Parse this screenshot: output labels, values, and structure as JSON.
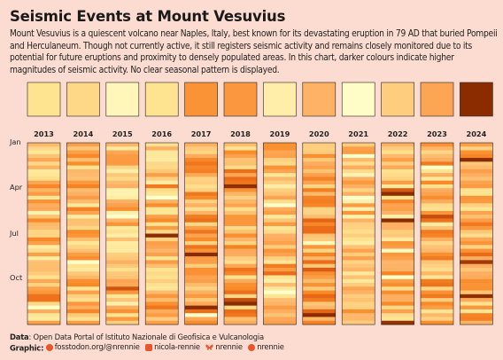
{
  "title": "Seismic Events at Mount Vesuvius",
  "subtitle": "Mount Vesuvius is a quiescent volcano near Naples, Italy, best known for its devastating eruption in 79 AD that buried Pompeii and Herculaneum. Though not currently active, it still registers seismic activity and remains closely monitored due to its potential for future eruptions and proximity to densely populated areas. In this chart, darker colours indicate higher magnitudes of seismic activity. No clear seasonal pattern is displayed.",
  "caption": {
    "data_label": "Data",
    "data_text": ": Open Data Portal of Istituto Nazionale di Geofisica e Vulcanologia",
    "graphic_label": "Graphic",
    "socials": [
      {
        "icon": "mastodon-icon",
        "text": "fosstodon.org/@nrennie"
      },
      {
        "icon": "linkedin-icon",
        "text": "nicola-rennie"
      },
      {
        "icon": "bluesky-icon",
        "text": "nrennie"
      },
      {
        "icon": "github-icon",
        "text": "nrennie"
      }
    ]
  },
  "colors": {
    "background": "#fcdcd0",
    "scale_low": "#ffffcc",
    "scale_mid": "#fd8d3c",
    "scale_high": "#8b2c00"
  },
  "chart_data": {
    "type": "heatmap",
    "years": [
      "2013",
      "2014",
      "2015",
      "2016",
      "2017",
      "2018",
      "2019",
      "2020",
      "2021",
      "2022",
      "2023",
      "2024"
    ],
    "annual_level": [
      0.25,
      0.3,
      0.08,
      0.25,
      0.65,
      0.62,
      0.15,
      0.48,
      0.02,
      0.35,
      0.55,
      1.0
    ],
    "month_labels": [
      "Jan",
      "Apr",
      "Jul",
      "Oct"
    ],
    "rows_per_year": 48,
    "weekly_level_mean": [
      0.45,
      0.46,
      0.4,
      0.44,
      0.55,
      0.55,
      0.42,
      0.58,
      0.4,
      0.48,
      0.52,
      0.5
    ]
  }
}
